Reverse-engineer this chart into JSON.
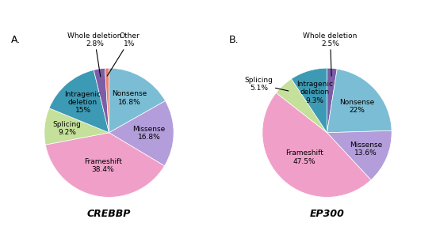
{
  "crebbp": {
    "labels": [
      "Nonsense",
      "Missense",
      "Frameshift",
      "Splicing",
      "Intragenic deletion",
      "Whole deletion",
      "Other"
    ],
    "values": [
      16.8,
      16.8,
      38.4,
      9.2,
      15.0,
      2.8,
      1.0
    ],
    "colors": [
      "#7bbdd4",
      "#b39ddb",
      "#f0a0c8",
      "#c5e09a",
      "#3d9ab5",
      "#7b5ea7",
      "#e88070"
    ],
    "title": "CREBBP",
    "panel_label": "A."
  },
  "ep300": {
    "labels": [
      "Whole deletion",
      "Nonsense",
      "Missense",
      "Frameshift",
      "Splicing",
      "Intragenic deletion"
    ],
    "values": [
      2.5,
      22.0,
      13.6,
      47.5,
      5.1,
      9.3
    ],
    "colors": [
      "#7b5ea7",
      "#7bbdd4",
      "#b39ddb",
      "#f0a0c8",
      "#c5e09a",
      "#3d9ab5"
    ],
    "title": "EP300",
    "panel_label": "B."
  },
  "font_size_label": 6.5,
  "font_size_title": 9,
  "font_size_panel": 9
}
